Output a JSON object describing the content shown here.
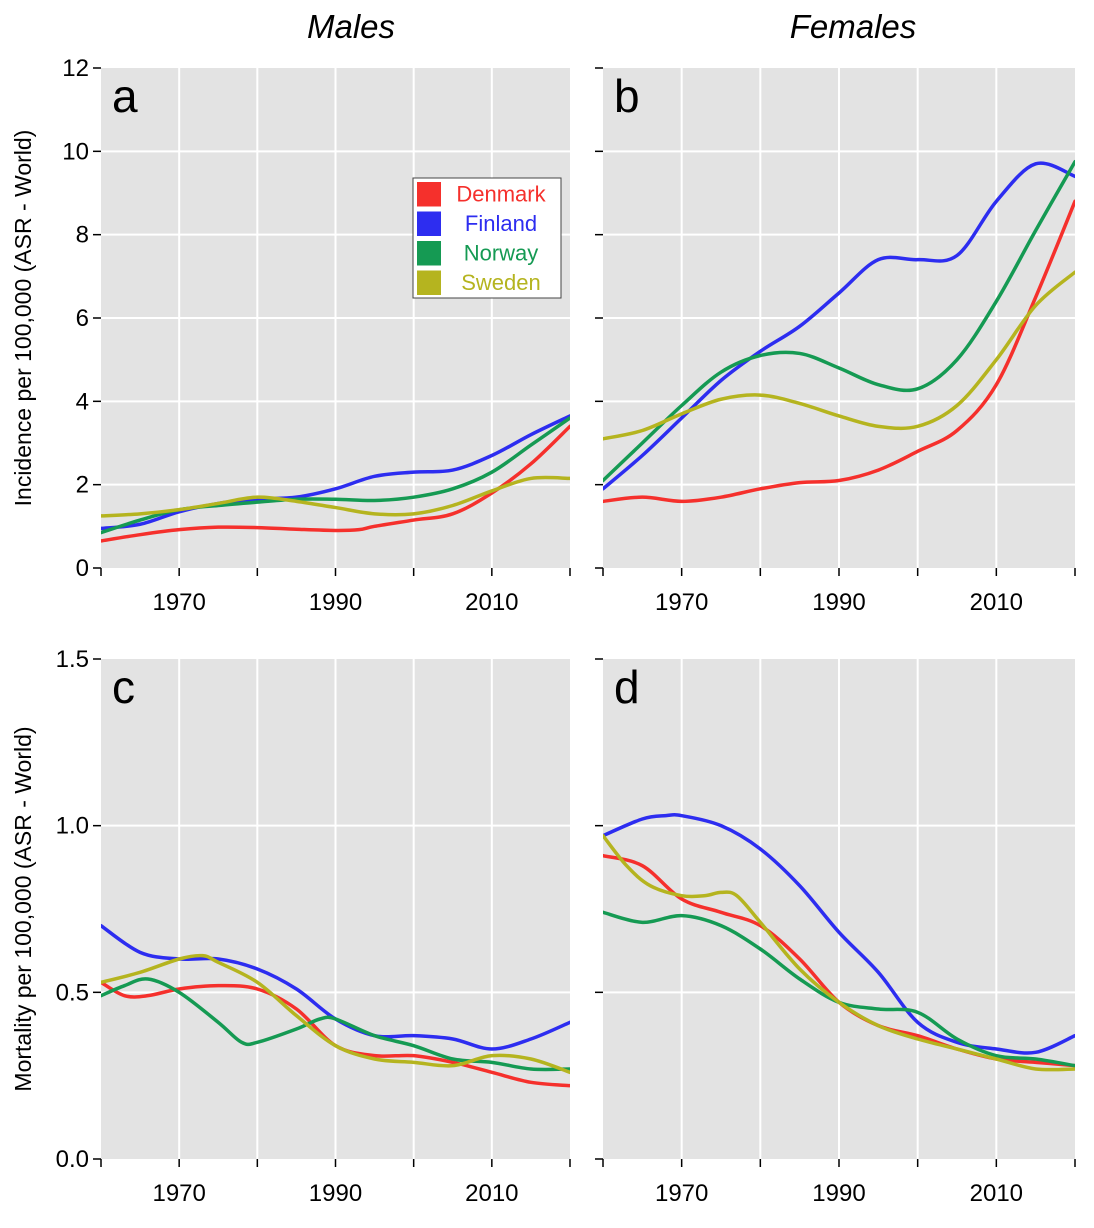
{
  "figure": {
    "col_titles": [
      "Males",
      "Females"
    ],
    "row_ylabels": [
      "Incidence per 100,000 (ASR - World)",
      "Mortality per 100,000 (ASR - World)"
    ]
  },
  "colors": {
    "Denmark": "#f5302c",
    "Finland": "#2d2df0",
    "Norway": "#159a53",
    "Sweden": "#b5b41f",
    "panel_bg": "#e3e3e3",
    "grid": "#ffffff"
  },
  "legend": {
    "entries": [
      "Denmark",
      "Finland",
      "Norway",
      "Sweden"
    ],
    "panel": "a"
  },
  "chart_data": [
    {
      "panel": "a",
      "type": "line",
      "xlim": [
        1960,
        2020
      ],
      "ylim": [
        0,
        12
      ],
      "xticks": [
        1970,
        1990,
        2010
      ],
      "yticks": [
        0,
        2,
        4,
        6,
        8,
        10,
        12
      ],
      "grid": true,
      "series": [
        {
          "name": "Denmark",
          "x": [
            1960,
            1965,
            1970,
            1975,
            1980,
            1985,
            1990,
            1993,
            1995,
            2000,
            2005,
            2010,
            2015,
            2020
          ],
          "values": [
            0.65,
            0.8,
            0.92,
            0.98,
            0.97,
            0.93,
            0.9,
            0.92,
            1.0,
            1.15,
            1.3,
            1.8,
            2.5,
            3.4
          ]
        },
        {
          "name": "Finland",
          "x": [
            1960,
            1965,
            1970,
            1975,
            1980,
            1985,
            1990,
            1995,
            2000,
            2005,
            2010,
            2015,
            2020
          ],
          "values": [
            0.95,
            1.05,
            1.35,
            1.55,
            1.65,
            1.7,
            1.9,
            2.2,
            2.3,
            2.35,
            2.7,
            3.2,
            3.65
          ]
        },
        {
          "name": "Norway",
          "x": [
            1960,
            1965,
            1970,
            1975,
            1980,
            1985,
            1990,
            1995,
            2000,
            2005,
            2010,
            2015,
            2020
          ],
          "values": [
            0.85,
            1.15,
            1.4,
            1.5,
            1.58,
            1.65,
            1.65,
            1.62,
            1.7,
            1.9,
            2.3,
            2.95,
            3.6
          ]
        },
        {
          "name": "Sweden",
          "x": [
            1960,
            1965,
            1970,
            1975,
            1980,
            1985,
            1990,
            1995,
            2000,
            2005,
            2010,
            2015,
            2020
          ],
          "values": [
            1.25,
            1.3,
            1.4,
            1.55,
            1.7,
            1.6,
            1.45,
            1.3,
            1.3,
            1.5,
            1.85,
            2.15,
            2.15
          ]
        }
      ]
    },
    {
      "panel": "b",
      "type": "line",
      "xlim": [
        1960,
        2020
      ],
      "ylim": [
        0,
        12
      ],
      "xticks": [
        1970,
        1990,
        2010
      ],
      "yticks": [
        0,
        2,
        4,
        6,
        8,
        10,
        12
      ],
      "grid": true,
      "series": [
        {
          "name": "Denmark",
          "x": [
            1960,
            1965,
            1970,
            1975,
            1980,
            1985,
            1990,
            1995,
            2000,
            2005,
            2010,
            2015,
            2020
          ],
          "values": [
            1.6,
            1.7,
            1.6,
            1.7,
            1.9,
            2.05,
            2.1,
            2.35,
            2.8,
            3.3,
            4.4,
            6.5,
            8.8
          ]
        },
        {
          "name": "Finland",
          "x": [
            1960,
            1965,
            1970,
            1975,
            1980,
            1985,
            1990,
            1995,
            2000,
            2005,
            2010,
            2015,
            2020
          ],
          "values": [
            1.9,
            2.7,
            3.6,
            4.5,
            5.2,
            5.8,
            6.6,
            7.4,
            7.4,
            7.5,
            8.8,
            9.7,
            9.4
          ]
        },
        {
          "name": "Norway",
          "x": [
            1960,
            1965,
            1970,
            1975,
            1980,
            1985,
            1990,
            1995,
            2000,
            2005,
            2010,
            2015,
            2020
          ],
          "values": [
            2.1,
            3.0,
            3.9,
            4.7,
            5.1,
            5.15,
            4.8,
            4.4,
            4.3,
            5.0,
            6.4,
            8.1,
            9.75
          ]
        },
        {
          "name": "Sweden",
          "x": [
            1960,
            1965,
            1970,
            1975,
            1980,
            1985,
            1990,
            1995,
            2000,
            2005,
            2010,
            2015,
            2020
          ],
          "values": [
            3.1,
            3.3,
            3.7,
            4.05,
            4.15,
            3.95,
            3.65,
            3.4,
            3.4,
            3.9,
            5.0,
            6.3,
            7.1
          ]
        }
      ]
    },
    {
      "panel": "c",
      "type": "line",
      "xlim": [
        1960,
        2020
      ],
      "ylim": [
        0,
        1.5
      ],
      "xticks": [
        1970,
        1990,
        2010
      ],
      "yticks": [
        0.0,
        0.5,
        1.0,
        1.5
      ],
      "grid": true,
      "series": [
        {
          "name": "Denmark",
          "x": [
            1960,
            1963,
            1966,
            1970,
            1975,
            1980,
            1985,
            1990,
            1995,
            2000,
            2005,
            2010,
            2015,
            2020
          ],
          "values": [
            0.53,
            0.49,
            0.49,
            0.51,
            0.52,
            0.51,
            0.45,
            0.34,
            0.31,
            0.31,
            0.29,
            0.26,
            0.23,
            0.22
          ]
        },
        {
          "name": "Finland",
          "x": [
            1960,
            1965,
            1970,
            1975,
            1980,
            1985,
            1990,
            1995,
            2000,
            2005,
            2010,
            2015,
            2020
          ],
          "values": [
            0.7,
            0.62,
            0.6,
            0.6,
            0.57,
            0.51,
            0.42,
            0.37,
            0.37,
            0.36,
            0.33,
            0.36,
            0.41
          ]
        },
        {
          "name": "Norway",
          "x": [
            1960,
            1963,
            1966,
            1970,
            1975,
            1978,
            1980,
            1985,
            1988,
            1990,
            1995,
            2000,
            2005,
            2010,
            2015,
            2020
          ],
          "values": [
            0.49,
            0.52,
            0.54,
            0.5,
            0.41,
            0.35,
            0.35,
            0.39,
            0.42,
            0.42,
            0.37,
            0.34,
            0.3,
            0.29,
            0.27,
            0.27
          ]
        },
        {
          "name": "Sweden",
          "x": [
            1960,
            1965,
            1970,
            1973,
            1975,
            1980,
            1985,
            1990,
            1995,
            2000,
            2005,
            2010,
            2015,
            2020
          ],
          "values": [
            0.53,
            0.56,
            0.6,
            0.61,
            0.59,
            0.53,
            0.43,
            0.34,
            0.3,
            0.29,
            0.28,
            0.31,
            0.3,
            0.26
          ]
        }
      ]
    },
    {
      "panel": "d",
      "type": "line",
      "xlim": [
        1960,
        2020
      ],
      "ylim": [
        0,
        1.5
      ],
      "xticks": [
        1970,
        1990,
        2010
      ],
      "yticks": [
        0.0,
        0.5,
        1.0,
        1.5
      ],
      "grid": true,
      "series": [
        {
          "name": "Denmark",
          "x": [
            1960,
            1965,
            1970,
            1975,
            1980,
            1985,
            1990,
            1995,
            2000,
            2005,
            2010,
            2015,
            2020
          ],
          "values": [
            0.91,
            0.88,
            0.78,
            0.74,
            0.7,
            0.6,
            0.47,
            0.4,
            0.37,
            0.33,
            0.3,
            0.29,
            0.28
          ]
        },
        {
          "name": "Finland",
          "x": [
            1960,
            1965,
            1968,
            1970,
            1975,
            1980,
            1985,
            1990,
            1995,
            2000,
            2005,
            2010,
            2015,
            2020
          ],
          "values": [
            0.97,
            1.02,
            1.03,
            1.03,
            1.0,
            0.93,
            0.82,
            0.68,
            0.56,
            0.41,
            0.35,
            0.33,
            0.32,
            0.37
          ]
        },
        {
          "name": "Norway",
          "x": [
            1960,
            1965,
            1970,
            1975,
            1980,
            1985,
            1990,
            1995,
            2000,
            2005,
            2010,
            2015,
            2020
          ],
          "values": [
            0.74,
            0.71,
            0.73,
            0.7,
            0.63,
            0.54,
            0.47,
            0.45,
            0.44,
            0.36,
            0.31,
            0.3,
            0.28
          ]
        },
        {
          "name": "Sweden",
          "x": [
            1960,
            1963,
            1966,
            1970,
            1973,
            1975,
            1977,
            1980,
            1985,
            1990,
            1995,
            2000,
            2005,
            2010,
            2015,
            2020
          ],
          "values": [
            0.97,
            0.88,
            0.82,
            0.79,
            0.79,
            0.8,
            0.79,
            0.71,
            0.57,
            0.47,
            0.4,
            0.36,
            0.33,
            0.3,
            0.27,
            0.27
          ]
        }
      ]
    }
  ]
}
